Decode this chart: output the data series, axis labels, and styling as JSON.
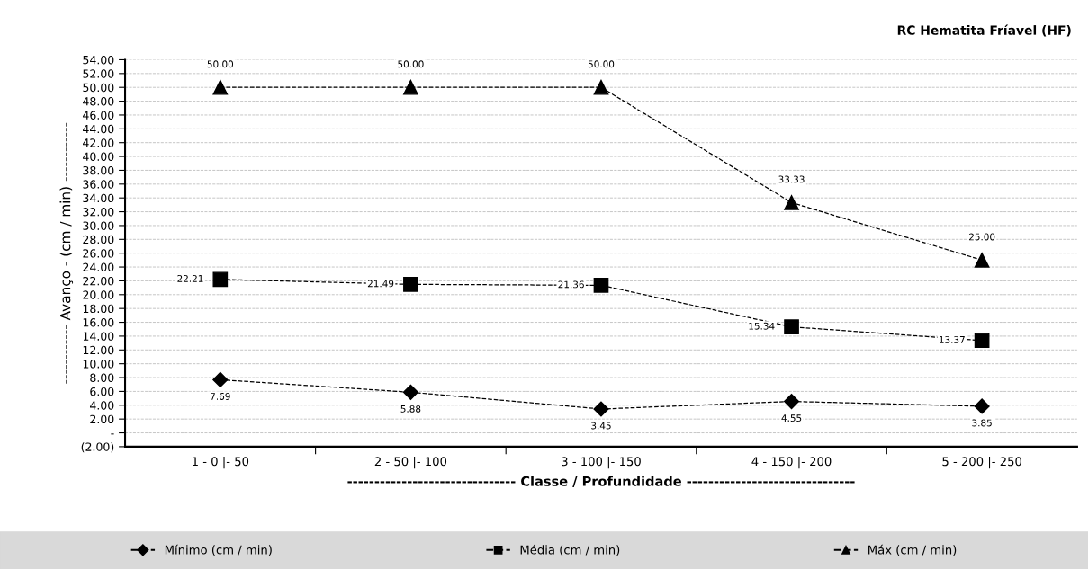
{
  "chart_data": {
    "type": "line",
    "title": "RC Hematita Fríavel (HF)",
    "xlabel": "------------------------------- Classe / Profundidade -------------------------------",
    "ylabel": "------------ Avanço - (cm / min) ------------",
    "categories": [
      "1 - 0 |- 50",
      "2 - 50 |- 100",
      "3 - 100 |- 150",
      "4 - 150 |- 200",
      "5 - 200 |- 250"
    ],
    "series": [
      {
        "name": "Mínimo (cm / min)",
        "color": "#000000",
        "marker": "diamond",
        "values": [
          7.69,
          5.88,
          3.45,
          4.55,
          3.85
        ],
        "value_labels": [
          "7.69",
          "5.88",
          "3.45",
          "4.55",
          "3.85"
        ]
      },
      {
        "name": "Média (cm / min)",
        "color": "#000000",
        "marker": "square",
        "values": [
          22.21,
          21.49,
          21.36,
          15.34,
          13.37
        ],
        "value_labels": [
          "22.21",
          "21.49",
          "21.36",
          "15.34",
          "13.37"
        ]
      },
      {
        "name": "Máx (cm / min)",
        "color": "#000000",
        "marker": "triangle",
        "values": [
          50.0,
          50.0,
          50.0,
          33.33,
          25.0
        ],
        "value_labels": [
          "50.00",
          "50.00",
          "50.00",
          "33.33",
          "25.00"
        ]
      }
    ],
    "ylim": [
      -2,
      54
    ],
    "yticks": [
      {
        "value": -2,
        "label": "(2.00)"
      },
      {
        "value": 0,
        "label": "-"
      },
      {
        "value": 2,
        "label": "2.00"
      },
      {
        "value": 4,
        "label": "4.00"
      },
      {
        "value": 6,
        "label": "6.00"
      },
      {
        "value": 8,
        "label": "8.00"
      },
      {
        "value": 10,
        "label": "10.00"
      },
      {
        "value": 12,
        "label": "12.00"
      },
      {
        "value": 14,
        "label": "14.00"
      },
      {
        "value": 16,
        "label": "16.00"
      },
      {
        "value": 18,
        "label": "18.00"
      },
      {
        "value": 20,
        "label": "20.00"
      },
      {
        "value": 22,
        "label": "22.00"
      },
      {
        "value": 24,
        "label": "24.00"
      },
      {
        "value": 26,
        "label": "26.00"
      },
      {
        "value": 28,
        "label": "28.00"
      },
      {
        "value": 30,
        "label": "30.00"
      },
      {
        "value": 32,
        "label": "32.00"
      },
      {
        "value": 34,
        "label": "34.00"
      },
      {
        "value": 36,
        "label": "36.00"
      },
      {
        "value": 38,
        "label": "38.00"
      },
      {
        "value": 40,
        "label": "40.00"
      },
      {
        "value": 42,
        "label": "42.00"
      },
      {
        "value": 44,
        "label": "44.00"
      },
      {
        "value": 46,
        "label": "46.00"
      },
      {
        "value": 48,
        "label": "48.00"
      },
      {
        "value": 50,
        "label": "50.00"
      },
      {
        "value": 52,
        "label": "52.00"
      },
      {
        "value": 54,
        "label": "54.00"
      }
    ],
    "grid": "y",
    "legend": "bottom",
    "line_style": "dashed"
  }
}
